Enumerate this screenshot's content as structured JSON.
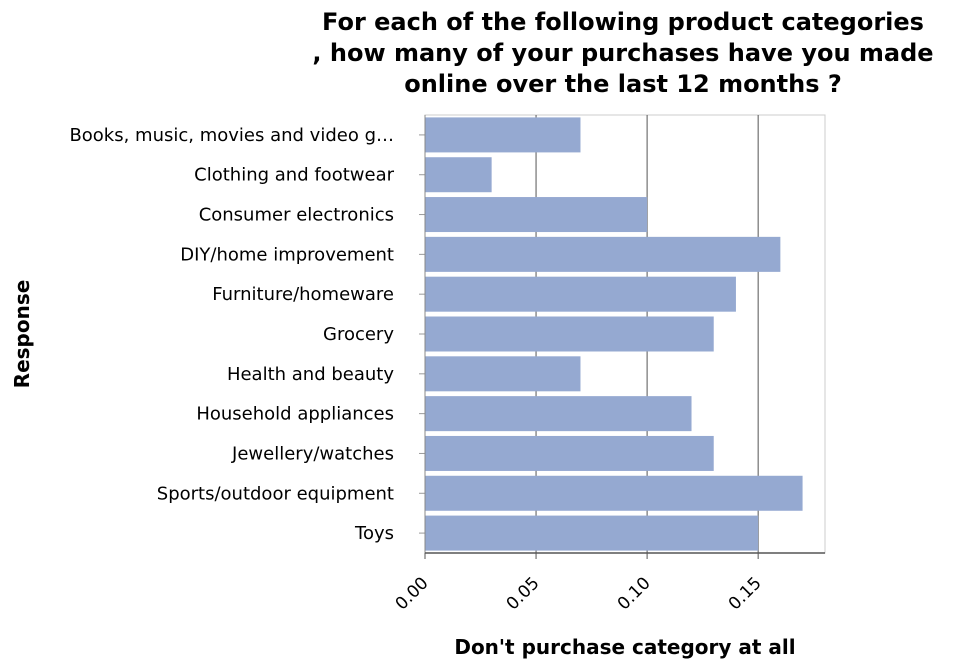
{
  "chart_data": {
    "type": "bar",
    "orientation": "horizontal",
    "title": "For each of the following product categories , how many of your purchases have you made online over the last 12 months ?",
    "title_lines": [
      "For each of the following product categories",
      ", how many of your purchases have you made",
      "online over the last 12 months ?"
    ],
    "xlabel": "Don't purchase category at all",
    "ylabel": "Response",
    "categories": [
      "Books, music, movies and video g…",
      "Clothing and footwear",
      "Consumer electronics",
      "DIY/home improvement",
      "Furniture/homeware",
      "Grocery",
      "Health and beauty",
      "Household appliances",
      "Jewellery/watches",
      "Sports/outdoor equipment",
      "Toys"
    ],
    "values": [
      0.07,
      0.03,
      0.1,
      0.16,
      0.14,
      0.13,
      0.07,
      0.12,
      0.13,
      0.17,
      0.15
    ],
    "xlim": [
      0,
      0.18
    ],
    "xticks": [
      "0.00",
      "0.05",
      "0.10",
      "0.15"
    ],
    "xtick_values": [
      0,
      0.05,
      0.1,
      0.15
    ],
    "grid": true,
    "legend": "none",
    "bar_color": "#95a9d1"
  }
}
